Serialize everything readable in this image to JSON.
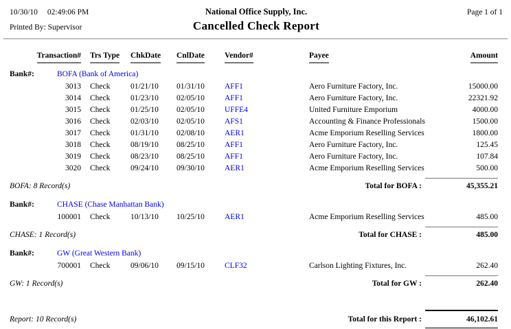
{
  "header": {
    "date": "10/30/10",
    "time": "02:49:06 PM",
    "printed_by": "Printed By: Supervisor",
    "company": "National Office Supply, Inc.",
    "title": "Cancelled Check Report",
    "page": "Page 1 of 1"
  },
  "columns": {
    "txn": "Transaction#",
    "trs_type": "Trs Type",
    "chk_date": "ChkDate",
    "cnl_date": "CnlDate",
    "vendor": "Vendor#",
    "payee": "Payee",
    "amount": "Amount"
  },
  "bank_label": "Bank#:",
  "link_color": "#0000ee",
  "sections": [
    {
      "bank_name": "BOFA (Bank of America)",
      "rows": [
        {
          "txn": "3013",
          "type": "Check",
          "chk": "01/21/10",
          "cnl": "01/31/10",
          "vendor": "AFF1",
          "payee": "Aero Furniture Factory, Inc.",
          "amount": "15000.00"
        },
        {
          "txn": "3014",
          "type": "Check",
          "chk": "01/23/10",
          "cnl": "02/05/10",
          "vendor": "AFF1",
          "payee": "Aero Furniture Factory, Inc.",
          "amount": "22321.92"
        },
        {
          "txn": "3015",
          "type": "Check",
          "chk": "01/25/10",
          "cnl": "02/05/10",
          "vendor": "UFFE4",
          "payee": "United Furniture Emporium",
          "amount": "4000.00"
        },
        {
          "txn": "3016",
          "type": "Check",
          "chk": "02/03/10",
          "cnl": "02/05/10",
          "vendor": "AFS1",
          "payee": "Accounting & Finance Professionals",
          "amount": "1500.00"
        },
        {
          "txn": "3017",
          "type": "Check",
          "chk": "01/31/10",
          "cnl": "02/08/10",
          "vendor": "AER1",
          "payee": "Acme Emporium Reselling Services",
          "amount": "1800.00"
        },
        {
          "txn": "3018",
          "type": "Check",
          "chk": "08/19/10",
          "cnl": "08/25/10",
          "vendor": "AFF1",
          "payee": "Aero Furniture Factory, Inc.",
          "amount": "125.45"
        },
        {
          "txn": "3019",
          "type": "Check",
          "chk": "08/23/10",
          "cnl": "08/25/10",
          "vendor": "AFF1",
          "payee": "Aero Furniture Factory, Inc.",
          "amount": "107.84"
        },
        {
          "txn": "3020",
          "type": "Check",
          "chk": "09/24/10",
          "cnl": "09/30/10",
          "vendor": "AER1",
          "payee": "Acme Emporium Reselling Services",
          "amount": "500.00"
        }
      ],
      "record_count": "BOFA: 8 Record(s)",
      "total_label": "Total for BOFA :",
      "total": "45,355.21"
    },
    {
      "bank_name": "CHASE (Chase Manhattan Bank)",
      "rows": [
        {
          "txn": "100001",
          "type": "Check",
          "chk": "10/13/10",
          "cnl": "10/25/10",
          "vendor": "AER1",
          "payee": "Acme Emporium Reselling Services",
          "amount": "485.00"
        }
      ],
      "record_count": "CHASE: 1 Record(s)",
      "total_label": "Total for CHASE :",
      "total": "485.00"
    },
    {
      "bank_name": "GW (Great Western Bank)",
      "rows": [
        {
          "txn": "700001",
          "type": "Check",
          "chk": "09/06/10",
          "cnl": "09/15/10",
          "vendor": "CLF32",
          "payee": "Carlson Lighting Fixtures, Inc.",
          "amount": "262.40"
        }
      ],
      "record_count": "GW: 1 Record(s)",
      "total_label": "Total for GW :",
      "total": "262.40"
    }
  ],
  "report_total": {
    "record_count": "Report: 10 Record(s)",
    "label": "Total for this Report :",
    "amount": "46,102.61"
  }
}
